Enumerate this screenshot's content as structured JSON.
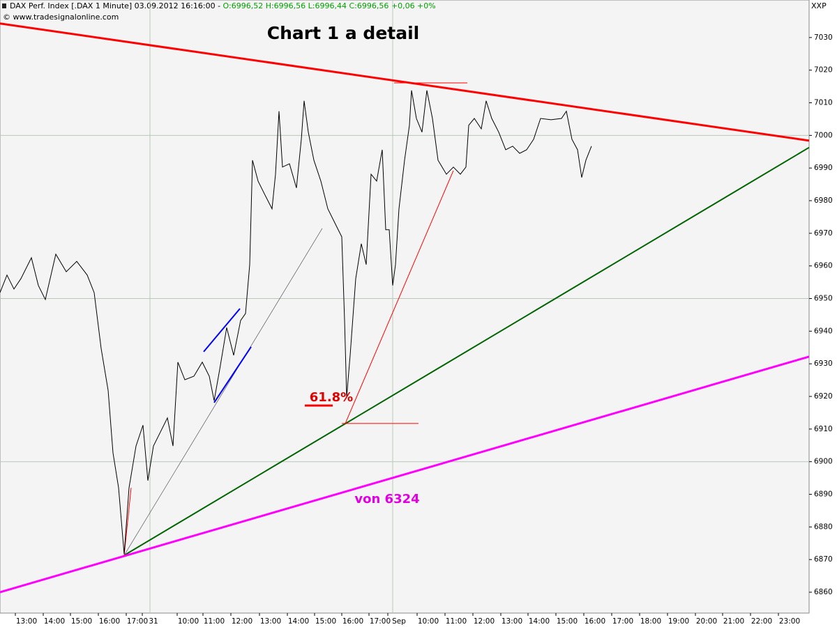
{
  "chart_data": {
    "type": "line",
    "header": "DAX Perf. Index [.DAX  1 Minute] 03.09.2012 16:16:00 -",
    "quote": "O:6996,52 H:6996,56 L:6996,44 C:6996,56 +0,06 +0%",
    "source": "© www.tradesignalonline.com",
    "axis_label": "XXP",
    "title": "Chart 1 a detail",
    "annotations": [
      "61.8%",
      "von 6324"
    ],
    "xlim": [
      0.05,
      29.05
    ],
    "ylim": [
      6853.6,
      7041.5
    ],
    "yticks": [
      6860,
      6870,
      6880,
      6890,
      6900,
      6910,
      6920,
      6930,
      6940,
      6950,
      6960,
      6970,
      6980,
      6990,
      7000,
      7010,
      7020,
      7030
    ],
    "ygrid": [
      6900,
      6950,
      7000
    ],
    "xgrid": [
      5.425,
      14.125
    ],
    "xticks": [
      {
        "value": 1,
        "label": "13:00"
      },
      {
        "value": 2,
        "label": "14:00"
      },
      {
        "value": 2.975,
        "label": "15:00"
      },
      {
        "value": 3.975,
        "label": "16:00"
      },
      {
        "value": 4.975,
        "label": "17:00"
      },
      {
        "value": 5.55,
        "label": "31"
      },
      {
        "value": 6.8,
        "label": "10:00"
      },
      {
        "value": 7.725,
        "label": "11:00"
      },
      {
        "value": 8.725,
        "label": "12:00"
      },
      {
        "value": 9.75,
        "label": "13:00"
      },
      {
        "value": 10.75,
        "label": "14:00"
      },
      {
        "value": 11.725,
        "label": "15:00"
      },
      {
        "value": 12.7,
        "label": "16:00"
      },
      {
        "value": 13.675,
        "label": "17:00"
      },
      {
        "value": 14.35,
        "label": "Sep"
      },
      {
        "value": 15.4,
        "label": "10:00"
      },
      {
        "value": 16.4,
        "label": "11:00"
      },
      {
        "value": 17.4,
        "label": "12:00"
      },
      {
        "value": 18.4,
        "label": "13:00"
      },
      {
        "value": 19.375,
        "label": "14:00"
      },
      {
        "value": 20.375,
        "label": "15:00"
      },
      {
        "value": 21.375,
        "label": "16:00"
      },
      {
        "value": 22.375,
        "label": "17:00"
      },
      {
        "value": 23.375,
        "label": "18:00"
      },
      {
        "value": 24.375,
        "label": "19:00"
      },
      {
        "value": 25.375,
        "label": "20:00"
      },
      {
        "value": 26.35,
        "label": "21:00"
      },
      {
        "value": 27.35,
        "label": "22:00"
      },
      {
        "value": 28.35,
        "label": "23:00"
      }
    ],
    "series": [
      {
        "color": "#000000",
        "x": [
          0.05,
          0.3,
          0.55,
          0.8,
          1.175,
          1.425,
          1.675,
          2.05,
          2.425,
          2.8,
          3.175,
          3.425,
          3.675,
          3.925,
          4.1,
          4.3,
          4.5,
          4.675,
          4.925,
          5.175,
          5.35,
          5.55,
          5.8,
          6.05,
          6.25,
          6.425,
          6.675,
          7,
          7.3,
          7.55,
          7.725,
          7.925,
          8.175,
          8.425,
          8.675,
          8.85,
          9,
          9.1,
          9.3,
          9.55,
          9.8,
          9.925,
          10.05,
          10.175,
          10.425,
          10.675,
          10.85,
          10.95,
          11.1,
          11.3,
          11.55,
          11.8,
          12.05,
          12.3,
          12.4,
          12.475,
          12.6,
          12.8,
          13,
          13.175,
          13.35,
          13.55,
          13.75,
          13.875,
          14,
          14.125,
          14.225,
          14.35,
          14.55,
          14.725,
          14.8,
          14.975,
          15.175,
          15.35,
          15.55,
          15.75,
          16.05,
          16.3,
          16.55,
          16.75,
          16.85,
          17.05,
          17.3,
          17.475,
          17.675,
          17.925,
          18.175,
          18.425,
          18.675,
          18.925,
          19.175,
          19.425,
          19.8,
          20.175,
          20.35,
          20.55,
          20.75,
          20.9,
          21.05,
          21.25
        ],
        "values": [
          6951.8,
          6957.2,
          6952.9,
          6956.1,
          6962.5,
          6954,
          6949.7,
          6963.6,
          6958.2,
          6961.4,
          6957.2,
          6951.8,
          6934.7,
          6921.9,
          6902.7,
          6892,
          6871.7,
          6892,
          6904.8,
          6911.2,
          6894.2,
          6904.8,
          6909.1,
          6913.4,
          6904.8,
          6930.5,
          6925.1,
          6926.2,
          6930.5,
          6926.2,
          6918.7,
          6928.3,
          6941.1,
          6932.6,
          6943.3,
          6945.4,
          6960.4,
          6992.4,
          6986,
          6981.7,
          6977.5,
          6988.1,
          7007.4,
          6990.3,
          6991.3,
          6983.9,
          6998.8,
          7010.6,
          7001,
          6992.4,
          6986,
          6977.5,
          6973.2,
          6968.9,
          6943.3,
          6919.8,
          6932.6,
          6956.1,
          6966.8,
          6960.4,
          6988.1,
          6986,
          6995.6,
          6971.1,
          6971.1,
          6954,
          6960.4,
          6977.5,
          6992.4,
          7003.1,
          7013.8,
          7005.2,
          7001,
          7013.8,
          7005.2,
          6992.4,
          6988.1,
          6990.3,
          6988.1,
          6990.3,
          7003.1,
          7005.2,
          7002,
          7010.6,
          7005.2,
          7001,
          6995.6,
          6996.7,
          6994.5,
          6995.6,
          6998.8,
          7005.2,
          7004.8,
          7005.2,
          7007.4,
          6998.8,
          6995.6,
          6987.1,
          6992.4,
          6996.7
        ]
      }
    ],
    "trendlines": [
      {
        "color": "#ff0000",
        "width": 3,
        "x": [
          0.05,
          29.05
        ],
        "values": [
          7034.3,
          6998.4
        ]
      },
      {
        "color": "#006400",
        "width": 2,
        "x": [
          4.5,
          29.05
        ],
        "values": [
          6871.3,
          6996.3
        ]
      },
      {
        "color": "#ff00ff",
        "width": 3,
        "x": [
          0.05,
          29.05
        ],
        "values": [
          6860,
          6932.2
        ]
      },
      {
        "color": "#555555",
        "width": 0.7,
        "x": [
          4.5,
          11.6
        ],
        "values": [
          6871.3,
          6971.5
        ]
      },
      {
        "color": "#ff0000",
        "width": 1,
        "x": [
          4.5,
          4.75
        ],
        "values": [
          6871.3,
          6892
        ]
      },
      {
        "color": "#ff0000",
        "width": 1,
        "x": [
          12.425,
          16.3
        ],
        "values": [
          6911.7,
          6989.2
        ]
      },
      {
        "color": "#ff0000",
        "width": 1,
        "x": [
          14.175,
          16.8
        ],
        "values": [
          7016.1,
          7016.1
        ]
      },
      {
        "color": "#ff0000",
        "width": 1,
        "x": [
          12.3,
          15.05
        ],
        "values": [
          6911.7,
          6911.7
        ]
      },
      {
        "color": "#ff0000",
        "width": 3,
        "x": [
          10.975,
          11.975
        ],
        "values": [
          6917.2,
          6917.2
        ]
      },
      {
        "color": "#0000ff",
        "width": 2,
        "x": [
          7.35,
          8.65
        ],
        "values": [
          6933.7,
          6946.9
        ]
      },
      {
        "color": "#0000ff",
        "width": 2,
        "x": [
          7.725,
          9.05
        ],
        "values": [
          6918.1,
          6935.2
        ]
      }
    ]
  }
}
